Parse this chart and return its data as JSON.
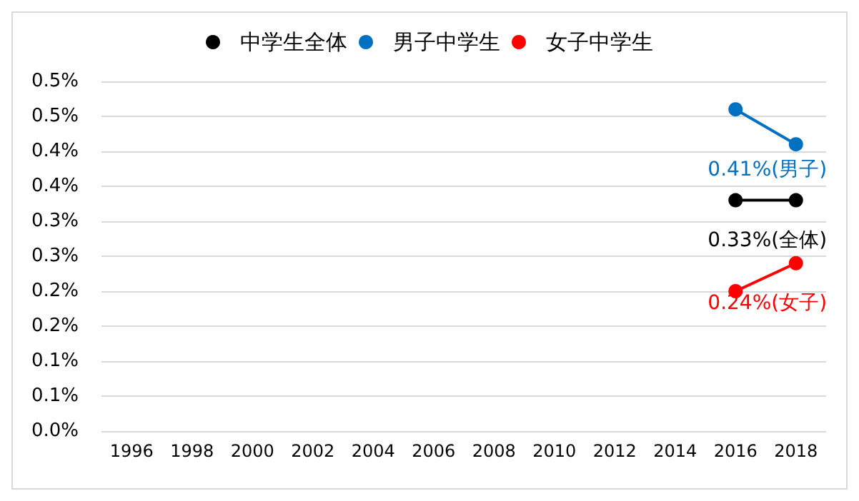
{
  "chart_data": {
    "type": "line",
    "categories": [
      "1996",
      "1998",
      "2000",
      "2002",
      "2004",
      "2006",
      "2008",
      "2010",
      "2012",
      "2014",
      "2016",
      "2018"
    ],
    "series": [
      {
        "name": "中学生全体",
        "color": "#000000",
        "values": [
          null,
          null,
          null,
          null,
          null,
          null,
          null,
          null,
          null,
          null,
          0.33,
          0.33
        ],
        "value_labels": [
          null,
          null,
          null,
          null,
          null,
          null,
          null,
          null,
          null,
          null,
          null,
          "0.33%(全体)"
        ]
      },
      {
        "name": "男子中学生",
        "color": "#0070c0",
        "values": [
          null,
          null,
          null,
          null,
          null,
          null,
          null,
          null,
          null,
          null,
          0.46,
          0.41
        ],
        "value_labels": [
          null,
          null,
          null,
          null,
          null,
          null,
          null,
          null,
          null,
          null,
          null,
          "0.41%(男子)"
        ]
      },
      {
        "name": "女子中学生",
        "color": "#ff0000",
        "values": [
          null,
          null,
          null,
          null,
          null,
          null,
          null,
          null,
          null,
          null,
          0.2,
          0.24
        ],
        "value_labels": [
          null,
          null,
          null,
          null,
          null,
          null,
          null,
          null,
          null,
          null,
          null,
          "0.24%(女子)"
        ]
      }
    ],
    "ylim": [
      0,
      0.5
    ],
    "yticks": [
      {
        "value": 0,
        "label": "0.0%"
      },
      {
        "value": 0.05,
        "label": "0.1%"
      },
      {
        "value": 0.1,
        "label": "0.1%"
      },
      {
        "value": 0.15,
        "label": "0.2%"
      },
      {
        "value": 0.2,
        "label": "0.2%"
      },
      {
        "value": 0.25,
        "label": "0.3%"
      },
      {
        "value": 0.3,
        "label": "0.3%"
      },
      {
        "value": 0.35,
        "label": "0.4%"
      },
      {
        "value": 0.4,
        "label": "0.4%"
      },
      {
        "value": 0.45,
        "label": "0.5%"
      },
      {
        "value": 0.5,
        "label": "0.5%"
      }
    ],
    "grid": "y",
    "legend": "top",
    "marker": "circle",
    "line_style": "solid"
  }
}
